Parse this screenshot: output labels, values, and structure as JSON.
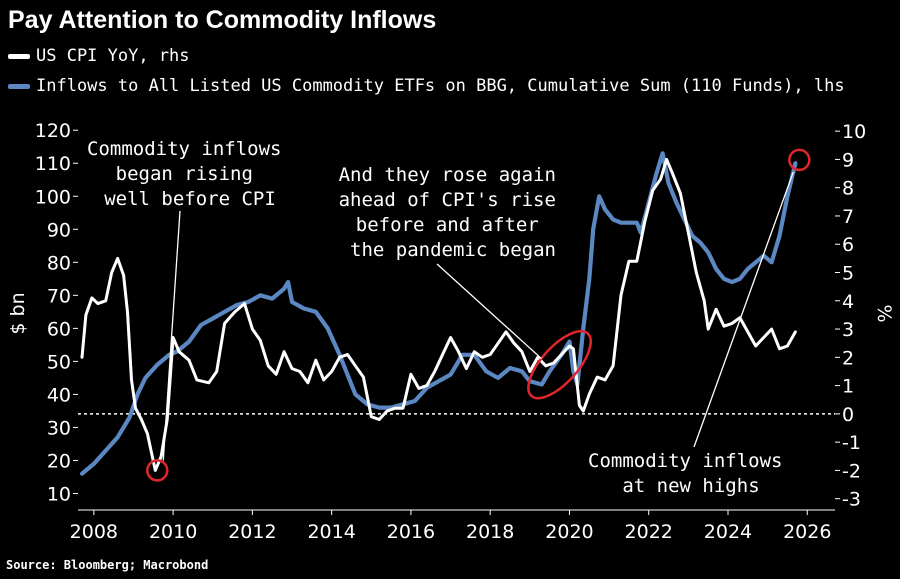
{
  "title": "Pay Attention to Commodity Inflows",
  "legend": [
    {
      "label": "US CPI YoY, rhs",
      "color": "#ffffff"
    },
    {
      "label": "Inflows to All Listed US Commodity ETFs on BBG, Cumulative Sum (110 Funds), lhs",
      "color": "#5b87c2"
    }
  ],
  "source": "Source: Bloomberg; Macrobond",
  "annotations": [
    {
      "lines": [
        "Commodity inflows",
        "began rising",
        "well before CPI"
      ]
    },
    {
      "lines": [
        "And they rose again",
        "ahead of CPI's rise",
        "before and after",
        "the pandemic began"
      ]
    },
    {
      "lines": [
        "Commodity inflows",
        "at new highs"
      ]
    }
  ],
  "chart_data": {
    "type": "line",
    "xlim": [
      2007.6,
      2026.7
    ],
    "x_ticks": [
      2008,
      2010,
      2012,
      2014,
      2016,
      2018,
      2020,
      2022,
      2024,
      2026
    ],
    "left_axis": {
      "label": "$ bn",
      "range": [
        5,
        124
      ],
      "ticks": [
        10,
        20,
        30,
        40,
        50,
        60,
        70,
        80,
        90,
        100,
        110,
        120
      ]
    },
    "right_axis": {
      "label": "%",
      "range": [
        -3.4,
        10.5
      ],
      "ticks": [
        -3,
        -2,
        -1,
        0,
        1,
        2,
        3,
        4,
        5,
        6,
        7,
        8,
        9,
        10
      ]
    },
    "reference_line": {
      "axis": "right",
      "value": 0
    },
    "series": [
      {
        "name": "Inflows to All Listed US Commodity ETFs on BBG, Cumulative Sum (110 Funds)",
        "axis": "left",
        "color": "#5b87c2",
        "points": [
          [
            2007.7,
            16
          ],
          [
            2008.0,
            19
          ],
          [
            2008.3,
            23
          ],
          [
            2008.6,
            27
          ],
          [
            2008.9,
            33
          ],
          [
            2009.1,
            40
          ],
          [
            2009.3,
            45
          ],
          [
            2009.6,
            49
          ],
          [
            2009.9,
            52
          ],
          [
            2010.1,
            53
          ],
          [
            2010.4,
            56
          ],
          [
            2010.7,
            61
          ],
          [
            2011.0,
            63
          ],
          [
            2011.3,
            65
          ],
          [
            2011.6,
            67
          ],
          [
            2011.9,
            68
          ],
          [
            2012.2,
            70
          ],
          [
            2012.5,
            69
          ],
          [
            2012.8,
            72
          ],
          [
            2012.9,
            74
          ],
          [
            2013.0,
            68
          ],
          [
            2013.3,
            66
          ],
          [
            2013.6,
            65
          ],
          [
            2013.9,
            60
          ],
          [
            2014.2,
            52
          ],
          [
            2014.4,
            46
          ],
          [
            2014.6,
            40
          ],
          [
            2014.9,
            37
          ],
          [
            2015.2,
            36
          ],
          [
            2015.5,
            36
          ],
          [
            2015.8,
            37
          ],
          [
            2016.1,
            38
          ],
          [
            2016.4,
            42
          ],
          [
            2016.7,
            44
          ],
          [
            2017.0,
            46
          ],
          [
            2017.3,
            52
          ],
          [
            2017.6,
            52
          ],
          [
            2017.9,
            47
          ],
          [
            2018.2,
            45
          ],
          [
            2018.5,
            48
          ],
          [
            2018.8,
            47
          ],
          [
            2019.0,
            44
          ],
          [
            2019.3,
            43
          ],
          [
            2019.5,
            47
          ],
          [
            2019.8,
            52
          ],
          [
            2020.0,
            56
          ],
          [
            2020.1,
            47
          ],
          [
            2020.2,
            43
          ],
          [
            2020.35,
            60
          ],
          [
            2020.5,
            75
          ],
          [
            2020.6,
            90
          ],
          [
            2020.75,
            100
          ],
          [
            2020.9,
            96
          ],
          [
            2021.1,
            93
          ],
          [
            2021.3,
            92
          ],
          [
            2021.5,
            92
          ],
          [
            2021.7,
            92
          ],
          [
            2021.8,
            89
          ],
          [
            2022.0,
            98
          ],
          [
            2022.2,
            107
          ],
          [
            2022.35,
            113
          ],
          [
            2022.5,
            104
          ],
          [
            2022.7,
            98
          ],
          [
            2022.9,
            93
          ],
          [
            2023.1,
            88
          ],
          [
            2023.3,
            86
          ],
          [
            2023.5,
            83
          ],
          [
            2023.7,
            78
          ],
          [
            2023.9,
            75
          ],
          [
            2024.1,
            74
          ],
          [
            2024.3,
            75
          ],
          [
            2024.5,
            78
          ],
          [
            2024.7,
            80
          ],
          [
            2024.9,
            82
          ],
          [
            2025.1,
            80
          ],
          [
            2025.3,
            88
          ],
          [
            2025.5,
            100
          ],
          [
            2025.7,
            110
          ]
        ]
      },
      {
        "name": "US CPI YoY",
        "axis": "right",
        "color": "#ffffff",
        "points": [
          [
            2007.7,
            2.0
          ],
          [
            2007.8,
            3.5
          ],
          [
            2007.95,
            4.1
          ],
          [
            2008.1,
            3.9
          ],
          [
            2008.3,
            4.0
          ],
          [
            2008.45,
            5.0
          ],
          [
            2008.6,
            5.5
          ],
          [
            2008.75,
            4.9
          ],
          [
            2008.85,
            3.6
          ],
          [
            2008.95,
            1.2
          ],
          [
            2009.05,
            0.2
          ],
          [
            2009.2,
            -0.2
          ],
          [
            2009.35,
            -0.7
          ],
          [
            2009.55,
            -2.0
          ],
          [
            2009.7,
            -1.5
          ],
          [
            2009.85,
            -0.2
          ],
          [
            2010.0,
            2.7
          ],
          [
            2010.15,
            2.2
          ],
          [
            2010.4,
            1.9
          ],
          [
            2010.6,
            1.2
          ],
          [
            2010.9,
            1.1
          ],
          [
            2011.1,
            1.5
          ],
          [
            2011.3,
            3.2
          ],
          [
            2011.55,
            3.6
          ],
          [
            2011.8,
            3.9
          ],
          [
            2012.0,
            3.0
          ],
          [
            2012.2,
            2.6
          ],
          [
            2012.4,
            1.7
          ],
          [
            2012.6,
            1.4
          ],
          [
            2012.8,
            2.2
          ],
          [
            2013.0,
            1.6
          ],
          [
            2013.2,
            1.5
          ],
          [
            2013.4,
            1.1
          ],
          [
            2013.6,
            1.9
          ],
          [
            2013.8,
            1.2
          ],
          [
            2014.0,
            1.5
          ],
          [
            2014.2,
            2.0
          ],
          [
            2014.4,
            2.1
          ],
          [
            2014.6,
            1.7
          ],
          [
            2014.8,
            1.3
          ],
          [
            2015.0,
            -0.1
          ],
          [
            2015.2,
            -0.2
          ],
          [
            2015.4,
            0.1
          ],
          [
            2015.6,
            0.2
          ],
          [
            2015.8,
            0.2
          ],
          [
            2016.0,
            1.4
          ],
          [
            2016.2,
            0.9
          ],
          [
            2016.4,
            1.0
          ],
          [
            2016.6,
            1.5
          ],
          [
            2016.8,
            2.1
          ],
          [
            2017.0,
            2.7
          ],
          [
            2017.2,
            2.2
          ],
          [
            2017.4,
            1.6
          ],
          [
            2017.6,
            2.2
          ],
          [
            2017.8,
            2.0
          ],
          [
            2018.0,
            2.1
          ],
          [
            2018.2,
            2.5
          ],
          [
            2018.4,
            2.9
          ],
          [
            2018.6,
            2.5
          ],
          [
            2018.8,
            2.2
          ],
          [
            2019.0,
            1.5
          ],
          [
            2019.2,
            2.0
          ],
          [
            2019.4,
            1.7
          ],
          [
            2019.6,
            1.8
          ],
          [
            2019.8,
            2.1
          ],
          [
            2020.0,
            2.4
          ],
          [
            2020.1,
            2.3
          ],
          [
            2020.25,
            0.3
          ],
          [
            2020.35,
            0.1
          ],
          [
            2020.5,
            0.7
          ],
          [
            2020.7,
            1.3
          ],
          [
            2020.9,
            1.2
          ],
          [
            2021.1,
            1.7
          ],
          [
            2021.3,
            4.2
          ],
          [
            2021.5,
            5.4
          ],
          [
            2021.7,
            5.4
          ],
          [
            2021.9,
            6.8
          ],
          [
            2022.1,
            7.9
          ],
          [
            2022.3,
            8.3
          ],
          [
            2022.45,
            9.0
          ],
          [
            2022.6,
            8.5
          ],
          [
            2022.8,
            7.8
          ],
          [
            2023.0,
            6.4
          ],
          [
            2023.2,
            5.0
          ],
          [
            2023.4,
            4.0
          ],
          [
            2023.5,
            3.0
          ],
          [
            2023.7,
            3.7
          ],
          [
            2023.9,
            3.1
          ],
          [
            2024.1,
            3.2
          ],
          [
            2024.3,
            3.4
          ],
          [
            2024.5,
            2.9
          ],
          [
            2024.7,
            2.4
          ],
          [
            2024.9,
            2.7
          ],
          [
            2025.1,
            3.0
          ],
          [
            2025.3,
            2.3
          ],
          [
            2025.5,
            2.4
          ],
          [
            2025.7,
            2.9
          ]
        ]
      }
    ],
    "highlights": [
      {
        "shape": "circle",
        "x": 2009.6,
        "axis": "right",
        "y": -2.0
      },
      {
        "shape": "ellipse",
        "x": 2019.75,
        "axis": "left",
        "y": 49
      },
      {
        "shape": "circle",
        "x": 2025.8,
        "axis": "left",
        "y": 111
      }
    ]
  }
}
